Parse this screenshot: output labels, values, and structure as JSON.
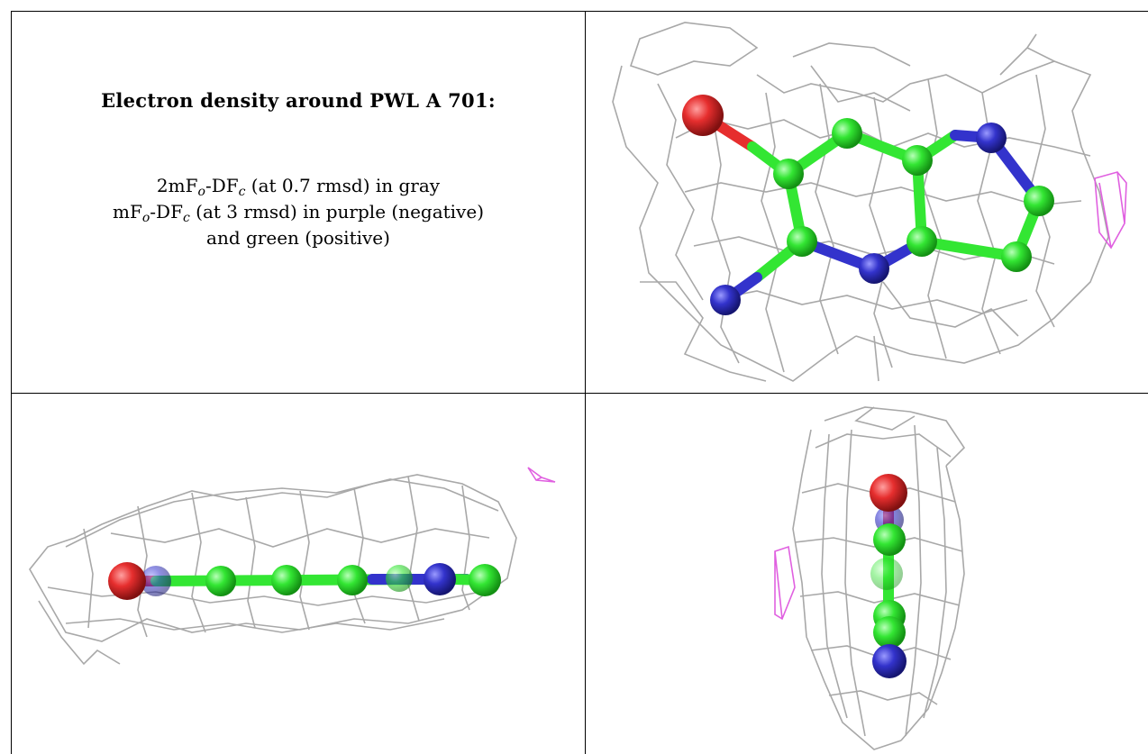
{
  "caption": {
    "title": "Electron density around PWL A 701:",
    "line1": {
      "a": "2mF",
      "sub1": "o",
      "b": "-DF",
      "sub2": "c",
      "c": " (at 0.7 rmsd) in gray"
    },
    "line2": {
      "a": "mF",
      "sub1": "o",
      "b": "-DF",
      "sub2": "c",
      "c": " (at 3 rmsd) in purple (negative)"
    },
    "line3": "and green (positive)"
  },
  "colors": {
    "carbon": "#33e633",
    "nitrogen": "#3333cc",
    "oxygen": "#e62e2e",
    "mesh_gray": "#a8a8a8",
    "mesh_purple": "#e060e0"
  },
  "panels": [
    "top-view",
    "side-view",
    "end-view"
  ]
}
